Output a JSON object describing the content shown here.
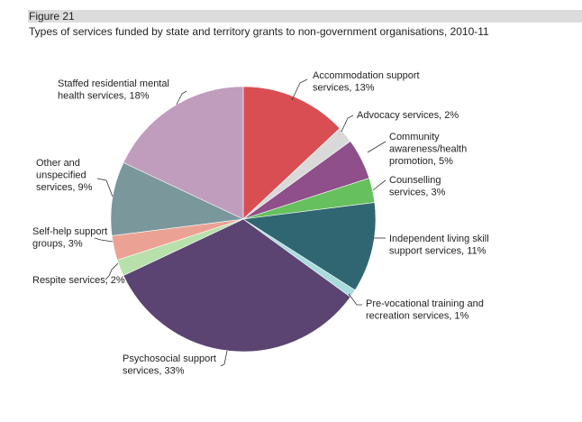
{
  "figure": {
    "label": "Figure 21",
    "title": "Types of services funded by state and territory grants to non-government organisations, 2010-11"
  },
  "chart_data": {
    "type": "pie",
    "title": "Types of services funded by state and territory grants to non-government organisations, 2010-11",
    "unit": "%",
    "start": "12 o'clock",
    "direction": "clockwise",
    "slices": [
      {
        "key": "accommodation",
        "value": 13,
        "color": "#d94e52",
        "label_lines": [
          "Accommodation support",
          "services, 13%"
        ]
      },
      {
        "key": "advocacy",
        "value": 2,
        "color": "#d9d9d9",
        "label_lines": [
          "Advocacy services, 2%"
        ]
      },
      {
        "key": "community",
        "value": 5,
        "color": "#8e4f8a",
        "label_lines": [
          "Community",
          "awareness/health",
          "promotion, 5%"
        ]
      },
      {
        "key": "counselling",
        "value": 3,
        "color": "#66c05e",
        "label_lines": [
          "Counselling",
          "services, 3%"
        ]
      },
      {
        "key": "independent",
        "value": 11,
        "color": "#2f6671",
        "label_lines": [
          "Independent living skill",
          "support services, 11%"
        ]
      },
      {
        "key": "prevocational",
        "value": 1,
        "color": "#a9dcdc",
        "label_lines": [
          "Pre-vocational training and",
          "recreation services, 1%"
        ]
      },
      {
        "key": "psychosocial",
        "value": 33,
        "color": "#5b4472",
        "label_lines": [
          "Psychosocial support",
          "services, 33%"
        ]
      },
      {
        "key": "respite",
        "value": 2,
        "color": "#b7e0aa",
        "label_lines": [
          "Respite services, 2%"
        ]
      },
      {
        "key": "selfhelp",
        "value": 3,
        "color": "#eba294",
        "label_lines": [
          "Self-help support",
          "groups, 3%"
        ]
      },
      {
        "key": "other",
        "value": 9,
        "color": "#7a979c",
        "label_lines": [
          "Other and",
          "unspecified",
          "services, 9%"
        ]
      },
      {
        "key": "staffed",
        "value": 18,
        "color": "#c09dbd",
        "label_lines": [
          "Staffed residential mental",
          "health services, 18%"
        ]
      }
    ]
  }
}
